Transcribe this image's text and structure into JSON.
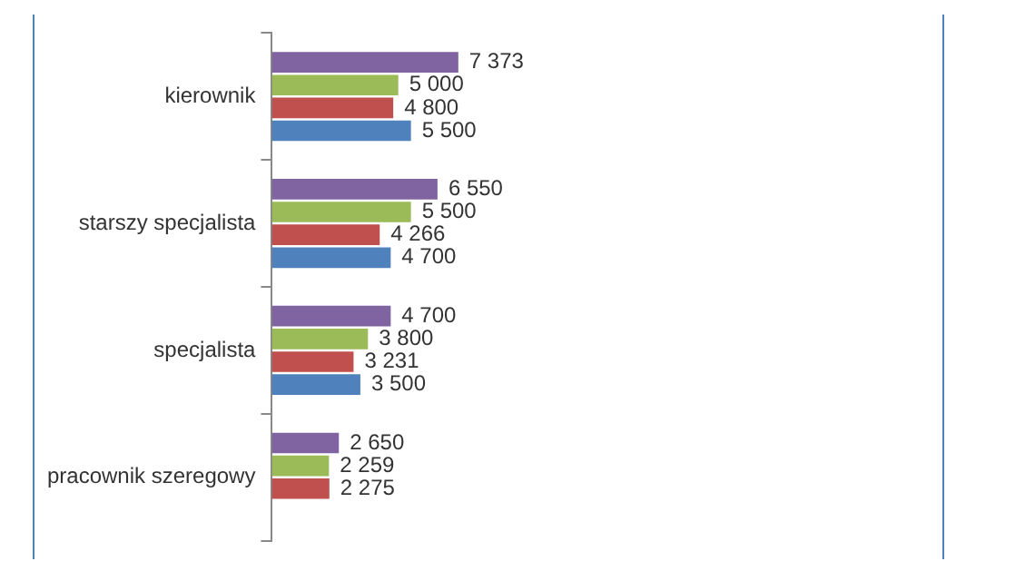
{
  "chart_data": {
    "type": "bar",
    "orientation": "horizontal",
    "categories": [
      "kierownik",
      "starszy specjalista",
      "specjalista",
      "pracownik szeregowy"
    ],
    "grid": false,
    "legend": false,
    "series": [
      {
        "color": "#8064a2",
        "values": [
          7373,
          6550,
          4700,
          2650
        ],
        "value_labels": [
          "7 373",
          "6 550",
          "4 700",
          "2 650"
        ]
      },
      {
        "color": "#9bbb59",
        "values": [
          5000,
          5500,
          3800,
          2259
        ],
        "value_labels": [
          "5 000",
          "5 500",
          "3 800",
          "2 259"
        ]
      },
      {
        "color": "#c0504d",
        "values": [
          4800,
          4266,
          3231,
          2275
        ],
        "value_labels": [
          "4 800",
          "4 266",
          "3 231",
          "2 275"
        ]
      },
      {
        "color": "#4f81bd",
        "values": [
          5500,
          4700,
          3500,
          null
        ],
        "value_labels": [
          "5 500",
          "4 700",
          "3 500",
          null
        ]
      }
    ]
  }
}
